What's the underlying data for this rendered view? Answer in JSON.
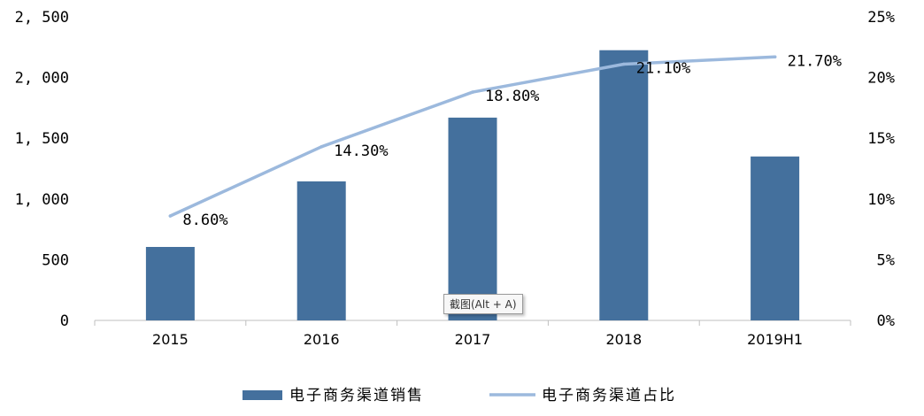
{
  "chart_data": {
    "type": "bar",
    "categories": [
      "2015",
      "2016",
      "2017",
      "2018",
      "2019H1"
    ],
    "series": [
      {
        "name": "电子商务渠道销售",
        "type": "bar",
        "axis": "left",
        "color": "#44709d",
        "values": [
          605,
          1145,
          1670,
          2225,
          1350
        ]
      },
      {
        "name": "电子商务渠道占比",
        "type": "line",
        "axis": "right",
        "color": "#9cb9dd",
        "values": [
          8.6,
          14.3,
          18.8,
          21.1,
          21.7
        ],
        "labels": [
          "8.60%",
          "14.30%",
          "18.80%",
          "21.10%",
          "21.70%"
        ]
      }
    ],
    "y_left": {
      "min": 0,
      "max": 2500,
      "ticks": [
        "0",
        "500",
        "1, 000",
        "1, 500",
        "2, 000",
        "2, 500"
      ]
    },
    "y_right": {
      "min": 0,
      "max": 25,
      "ticks": [
        "0%",
        "5%",
        "10%",
        "15%",
        "20%",
        "25%"
      ]
    },
    "legend_position": "bottom",
    "grid": false
  },
  "tooltip": {
    "text": "截图(Alt + A)"
  }
}
